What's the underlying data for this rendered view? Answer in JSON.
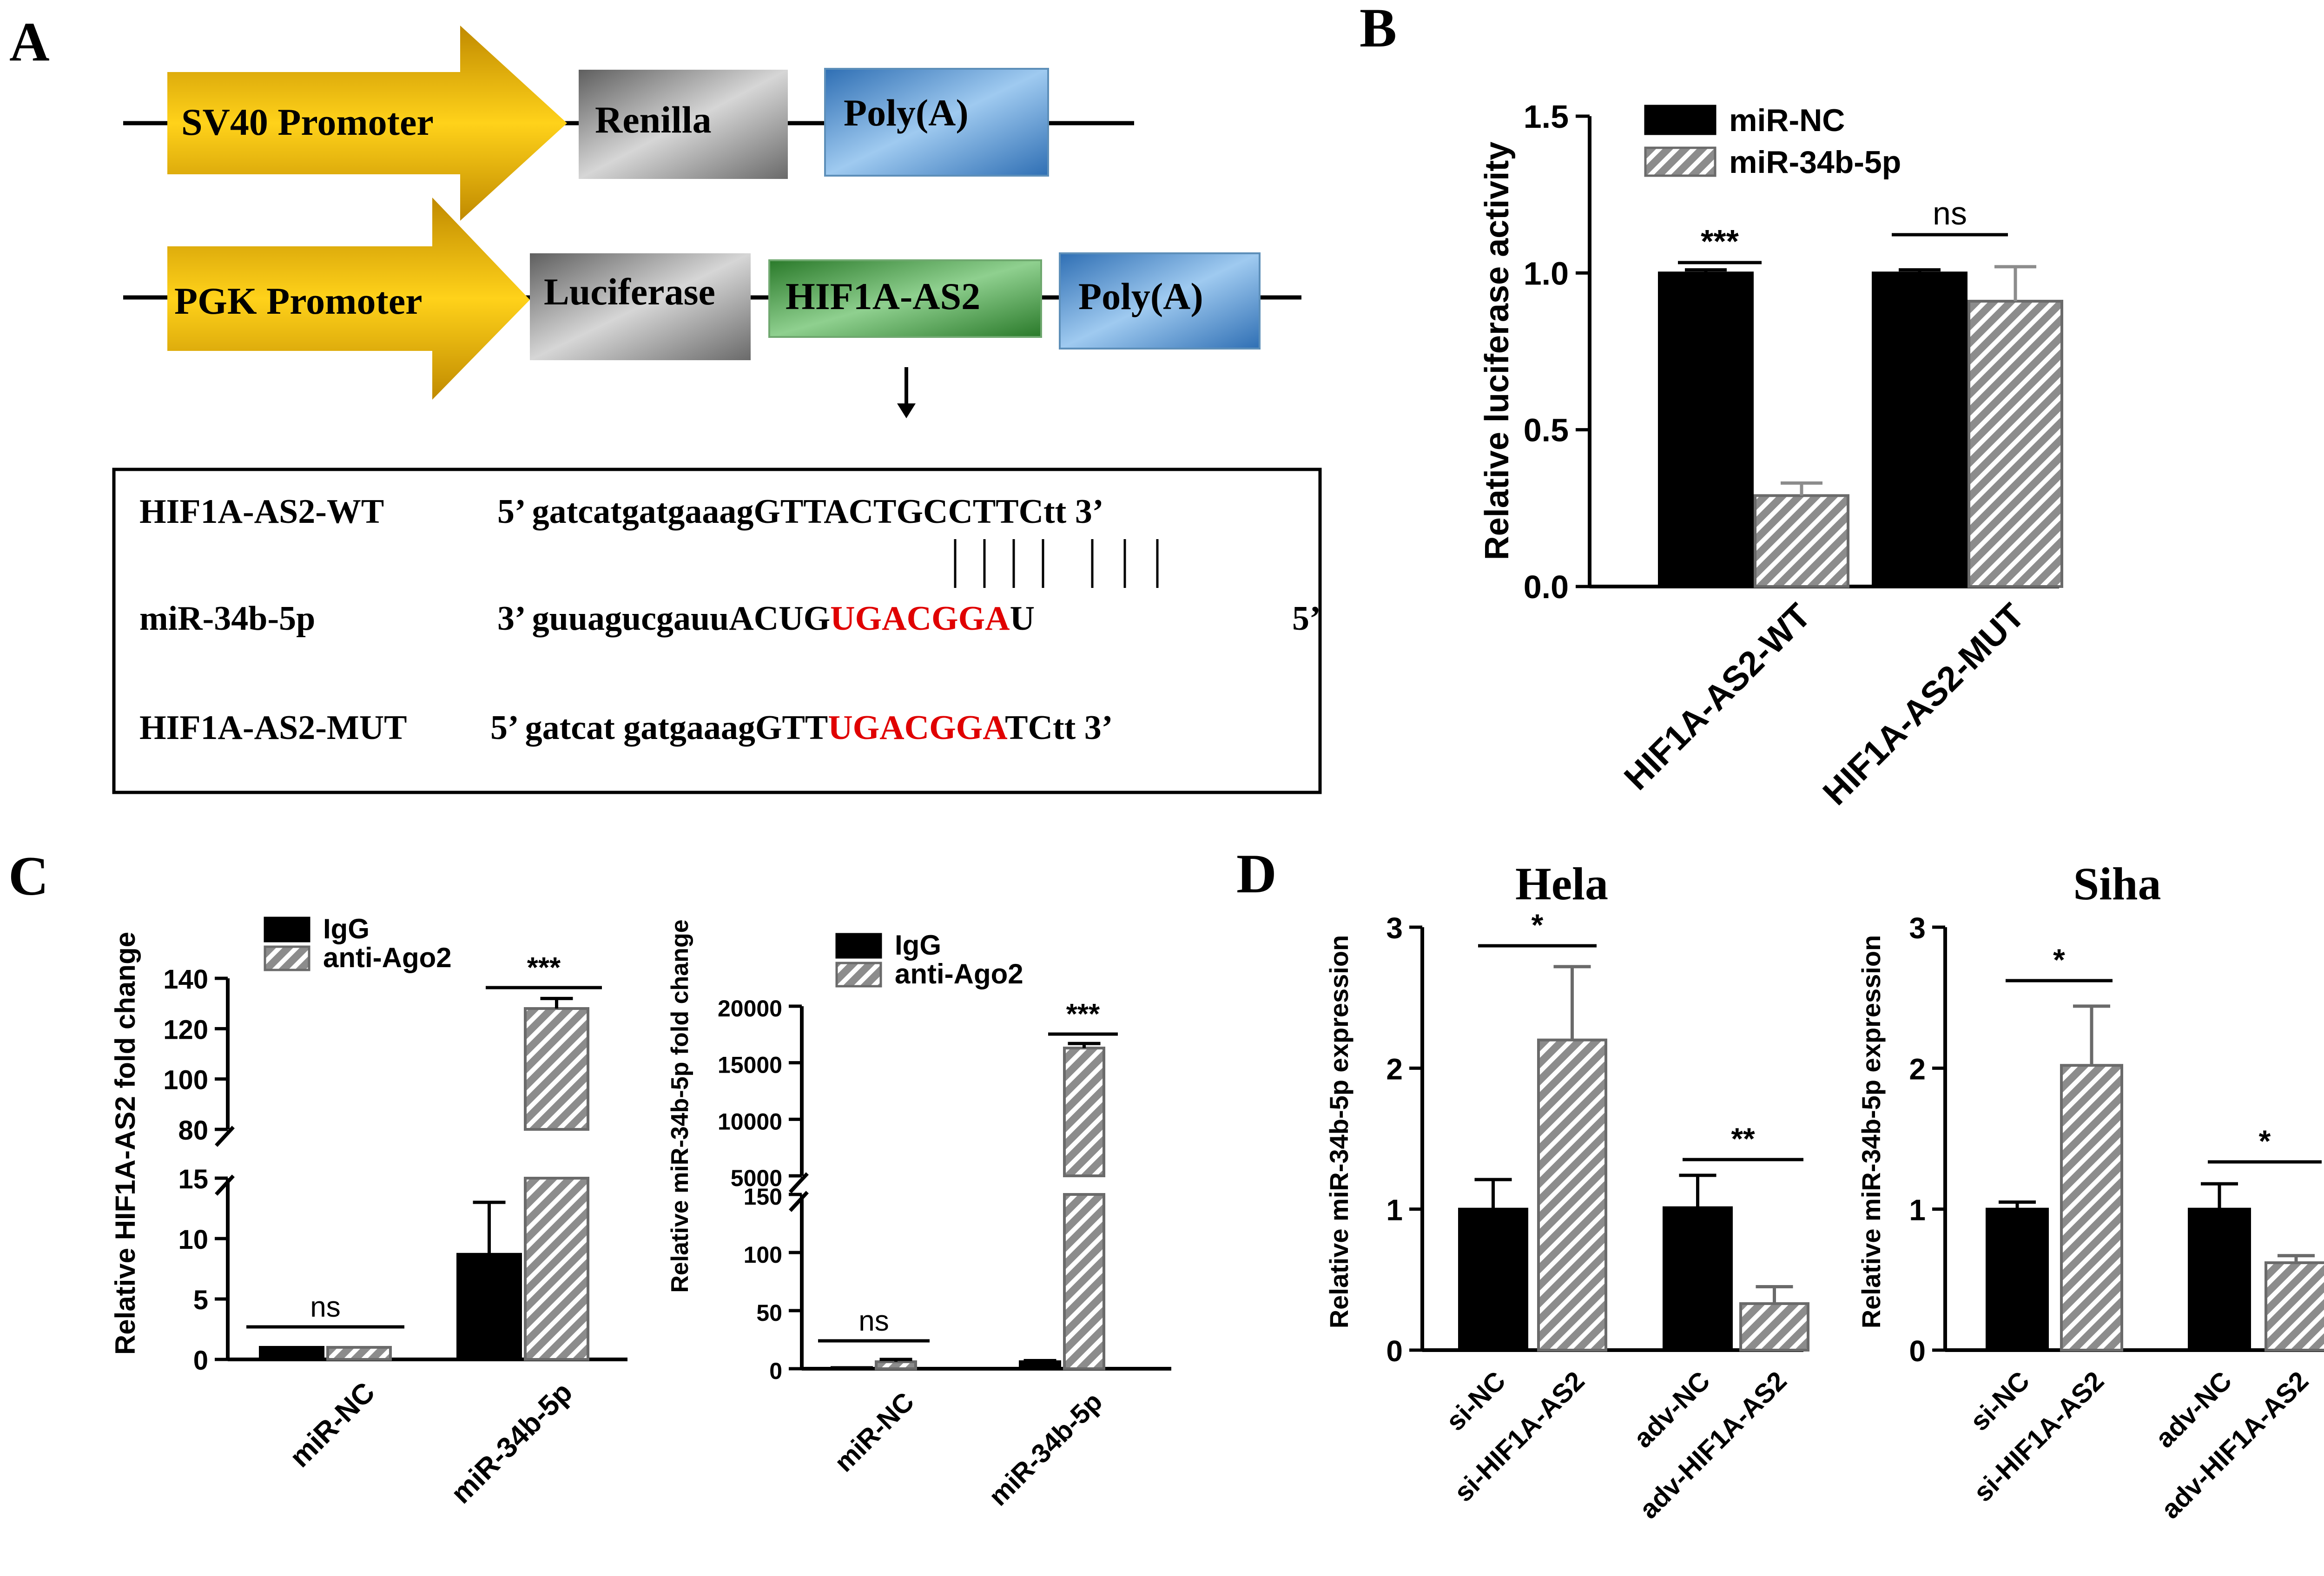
{
  "colors": {
    "black_bar": "#000000",
    "hatch_bar": "#8c8c8c",
    "sig_red": "#e00000",
    "promoter_gold": "#f0b400",
    "renilla_gray": "#8f8f8f",
    "polya_blue": "#4a8fd0",
    "hif_green": "#3c9a3c"
  },
  "panel_a": {
    "label": "A",
    "row1": {
      "promoter": "SV40 Promoter",
      "gene": "Renilla",
      "polya": "Poly(A)"
    },
    "row2": {
      "promoter": "PGK Promoter",
      "gene": "Luciferase",
      "insert": "HIF1A-AS2",
      "polya": "Poly(A)"
    },
    "seq": {
      "wt_name": "HIF1A-AS2-WT",
      "wt_seq": "5’  gatcatgatgaaagGTTACTGCCTTCtt 3’",
      "mir_name": "miR-34b-5p",
      "mir_seq_prefix": "3’ guuagucgauuACUG",
      "mir_seq_seed": "UGACGGA",
      "mir_seq_suffix": "U",
      "mir_end": "5’",
      "mut_name": "HIF1A-AS2-MUT",
      "mut_seq_prefix": "5’ gatcat gatgaaagGTT",
      "mut_seq_seed": "UGACGGA",
      "mut_seq_suffix": "TCtt 3’"
    }
  },
  "chart_data": [
    {
      "id": "B",
      "panel_label": "B",
      "type": "bar",
      "ylabel": "Relative  luciferase activity",
      "ylim": [
        0,
        1.5
      ],
      "yticks": [
        "0.0",
        "0.5",
        "1.0",
        "1.5"
      ],
      "categories": [
        "HIF1A-AS2-WT",
        "HIF1A-AS2-MUT"
      ],
      "series": [
        {
          "name": "miR-NC",
          "values": [
            1.0,
            1.0
          ],
          "errors": [
            0.01,
            0.01
          ]
        },
        {
          "name": "miR-34b-5p",
          "values": [
            0.29,
            0.91
          ],
          "errors": [
            0.04,
            0.11
          ]
        }
      ],
      "significance": [
        "***",
        "ns"
      ],
      "legend": "top-left"
    },
    {
      "id": "C1",
      "panel_label": "C",
      "type": "bar",
      "ylabel": "Relative  HIF1A-AS2 fold change",
      "y_axis": "broken",
      "lower_range": [
        0,
        15
      ],
      "upper_range": [
        80,
        140
      ],
      "yticks_lower": [
        "0",
        "5",
        "10",
        "15"
      ],
      "yticks_upper": [
        "80",
        "100",
        "120",
        "140"
      ],
      "categories": [
        "miR-NC",
        "miR-34b-5p"
      ],
      "series": [
        {
          "name": "IgG",
          "values": [
            1.0,
            8.7
          ],
          "errors": [
            0,
            4.3
          ]
        },
        {
          "name": "anti-Ago2",
          "values": [
            1.0,
            128
          ],
          "errors": [
            0,
            4
          ]
        }
      ],
      "significance": [
        "ns",
        "***"
      ],
      "legend": "top-left"
    },
    {
      "id": "C2",
      "type": "bar",
      "ylabel": "Relative miR-34b-5p fold change",
      "y_axis": "broken",
      "lower_range": [
        0,
        150
      ],
      "upper_range": [
        5000,
        20000
      ],
      "yticks_lower": [
        "0",
        "50",
        "100",
        "150"
      ],
      "yticks_upper": [
        "5000",
        "10000",
        "15000",
        "20000"
      ],
      "categories": [
        "miR-NC",
        "miR-34b-5p"
      ],
      "series": [
        {
          "name": "IgG",
          "values": [
            1.0,
            6
          ],
          "errors": [
            0,
            1
          ]
        },
        {
          "name": "anti-Ago2",
          "values": [
            6,
            16300
          ],
          "errors": [
            2,
            400
          ]
        }
      ],
      "significance": [
        "ns",
        "***"
      ],
      "legend": "top-left"
    },
    {
      "id": "D1",
      "panel_label": "D",
      "type": "bar",
      "title": "Hela",
      "ylabel": "Relative  miR-34b-5p expression",
      "ylim": [
        0,
        3
      ],
      "yticks": [
        "0",
        "1",
        "2",
        "3"
      ],
      "categories": [
        "si-NC",
        "si-HIF1A-AS2",
        "adv-NC",
        "adv-HIF1A-AS2"
      ],
      "values": [
        1.0,
        2.2,
        1.01,
        0.33
      ],
      "errors": [
        0.21,
        0.52,
        0.23,
        0.12
      ],
      "styles": [
        "solid",
        "hatch",
        "solid",
        "hatch"
      ],
      "significance": [
        "*",
        "**"
      ]
    },
    {
      "id": "D2",
      "type": "bar",
      "title": "Siha",
      "ylabel": "Relative  miR-34b-5p expression",
      "ylim": [
        0,
        3
      ],
      "yticks": [
        "0",
        "1",
        "2",
        "3"
      ],
      "categories": [
        "si-NC",
        "si-HIF1A-AS2",
        "adv-NC",
        "adv-HIF1A-AS2"
      ],
      "values": [
        1.0,
        2.02,
        1.0,
        0.62
      ],
      "errors": [
        0.05,
        0.42,
        0.18,
        0.05
      ],
      "styles": [
        "solid",
        "hatch",
        "solid",
        "hatch"
      ],
      "significance": [
        "*",
        "*"
      ]
    }
  ]
}
